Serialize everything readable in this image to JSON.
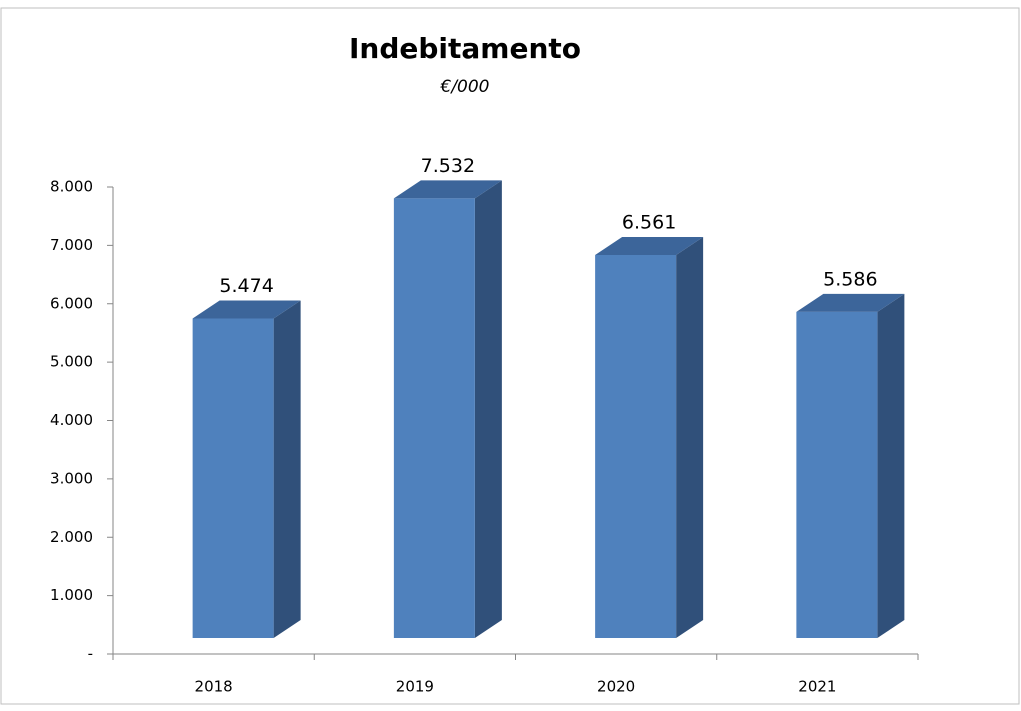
{
  "chart_data": {
    "type": "bar",
    "title": "Indebitamento",
    "subtitle": "€/000",
    "categories": [
      "2018",
      "2019",
      "2020",
      "2021"
    ],
    "values": [
      5474,
      7532,
      6561,
      5586
    ],
    "value_labels": [
      "5.474",
      "7.532",
      "6.561",
      "5.586"
    ],
    "color": "#4f81bd",
    "ylim": [
      0,
      8000
    ],
    "yticks": [
      {
        "value": 0,
        "label": "-"
      },
      {
        "value": 1000,
        "label": "1.000"
      },
      {
        "value": 2000,
        "label": "2.000"
      },
      {
        "value": 3000,
        "label": "3.000"
      },
      {
        "value": 4000,
        "label": "4.000"
      },
      {
        "value": 5000,
        "label": "5.000"
      },
      {
        "value": 6000,
        "label": "6.000"
      },
      {
        "value": 7000,
        "label": "7.000"
      },
      {
        "value": 8000,
        "label": "8.000"
      }
    ],
    "grid": false
  }
}
